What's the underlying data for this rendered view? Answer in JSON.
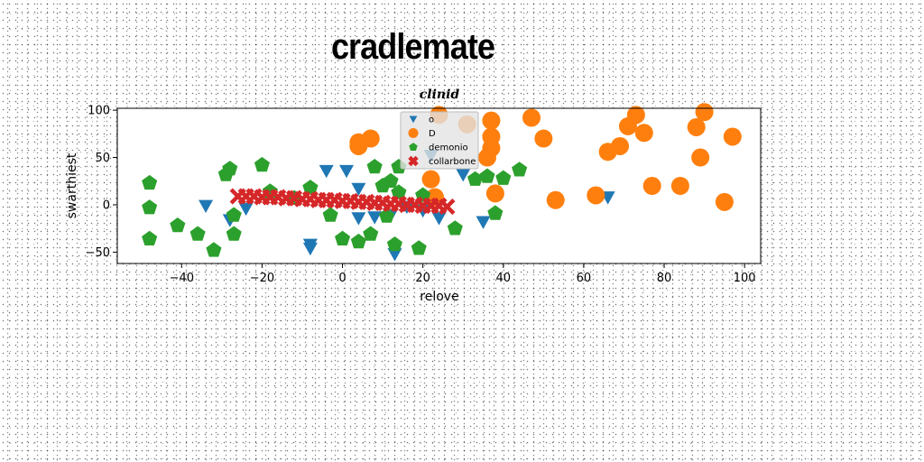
{
  "page": {
    "title": "cradlemate"
  },
  "chart_data": {
    "type": "scatter",
    "title": "clinid",
    "xlabel": "relove",
    "ylabel": "swarthiest",
    "xlim": [
      -56,
      104
    ],
    "ylim": [
      -62,
      102
    ],
    "xticks": [
      -40,
      -20,
      0,
      20,
      40,
      60,
      80,
      100
    ],
    "yticks": [
      -50,
      0,
      50,
      100
    ],
    "grid": false,
    "legend_position": "top-center",
    "series": [
      {
        "name": "o",
        "marker": "triangle-down",
        "color": "#1f77b4",
        "points": [
          [
            -34,
            -1
          ],
          [
            -28,
            -16
          ],
          [
            -24,
            -4
          ],
          [
            -8,
            -42
          ],
          [
            -8,
            -46
          ],
          [
            -4,
            36
          ],
          [
            1,
            36
          ],
          [
            4,
            17
          ],
          [
            4,
            -14
          ],
          [
            8,
            -13
          ],
          [
            12,
            -11
          ],
          [
            13,
            -52
          ],
          [
            16,
            -2
          ],
          [
            20,
            -6
          ],
          [
            22,
            52
          ],
          [
            24,
            -14
          ],
          [
            30,
            32
          ],
          [
            35,
            -18
          ],
          [
            66,
            8
          ]
        ]
      },
      {
        "name": "D",
        "marker": "circle",
        "color": "#ff7f0e",
        "points": [
          [
            4,
            62
          ],
          [
            4,
            66
          ],
          [
            7,
            70
          ],
          [
            22,
            27
          ],
          [
            23,
            8
          ],
          [
            24,
            95
          ],
          [
            31,
            85
          ],
          [
            36,
            50
          ],
          [
            37,
            60
          ],
          [
            37,
            72
          ],
          [
            37,
            89
          ],
          [
            38,
            12
          ],
          [
            47,
            92
          ],
          [
            50,
            70
          ],
          [
            53,
            5
          ],
          [
            63,
            10
          ],
          [
            66,
            56
          ],
          [
            69,
            62
          ],
          [
            71,
            83
          ],
          [
            73,
            95
          ],
          [
            75,
            76
          ],
          [
            77,
            20
          ],
          [
            84,
            20
          ],
          [
            88,
            82
          ],
          [
            89,
            50
          ],
          [
            90,
            98
          ],
          [
            95,
            3
          ],
          [
            97,
            72
          ]
        ]
      },
      {
        "name": "demonio",
        "marker": "pentagon",
        "color": "#2ca02c",
        "points": [
          [
            -48,
            23
          ],
          [
            -48,
            -3
          ],
          [
            -48,
            -36
          ],
          [
            -41,
            -22
          ],
          [
            -36,
            -31
          ],
          [
            -32,
            -48
          ],
          [
            -29,
            32
          ],
          [
            -28,
            38
          ],
          [
            -27,
            -31
          ],
          [
            -27,
            -11
          ],
          [
            -20,
            42
          ],
          [
            -18,
            14
          ],
          [
            -12,
            7
          ],
          [
            -8,
            18
          ],
          [
            -3,
            -11
          ],
          [
            0,
            -36
          ],
          [
            4,
            -39
          ],
          [
            7,
            -31
          ],
          [
            8,
            40
          ],
          [
            10,
            20
          ],
          [
            11,
            -12
          ],
          [
            12,
            25
          ],
          [
            13,
            -42
          ],
          [
            14,
            40
          ],
          [
            14,
            13
          ],
          [
            19,
            -46
          ],
          [
            20,
            10
          ],
          [
            28,
            -25
          ],
          [
            33,
            27
          ],
          [
            36,
            30
          ],
          [
            38,
            -9
          ],
          [
            40,
            28
          ],
          [
            44,
            37
          ]
        ]
      },
      {
        "name": "collarbone",
        "marker": "x",
        "color": "#d62728",
        "points": [
          [
            -26,
            9
          ],
          [
            -24,
            9
          ],
          [
            -22,
            9
          ],
          [
            -20,
            8
          ],
          [
            -18,
            8
          ],
          [
            -16,
            8
          ],
          [
            -14,
            7
          ],
          [
            -12,
            7
          ],
          [
            -10,
            6
          ],
          [
            -8,
            6
          ],
          [
            -6,
            5
          ],
          [
            -4,
            5
          ],
          [
            -2,
            5
          ],
          [
            0,
            4
          ],
          [
            2,
            4
          ],
          [
            4,
            3
          ],
          [
            6,
            3
          ],
          [
            8,
            2
          ],
          [
            10,
            2
          ],
          [
            12,
            1
          ],
          [
            14,
            1
          ],
          [
            16,
            0
          ],
          [
            18,
            0
          ],
          [
            20,
            -1
          ],
          [
            22,
            -1
          ],
          [
            24,
            -1
          ],
          [
            26,
            -2
          ]
        ]
      }
    ]
  }
}
